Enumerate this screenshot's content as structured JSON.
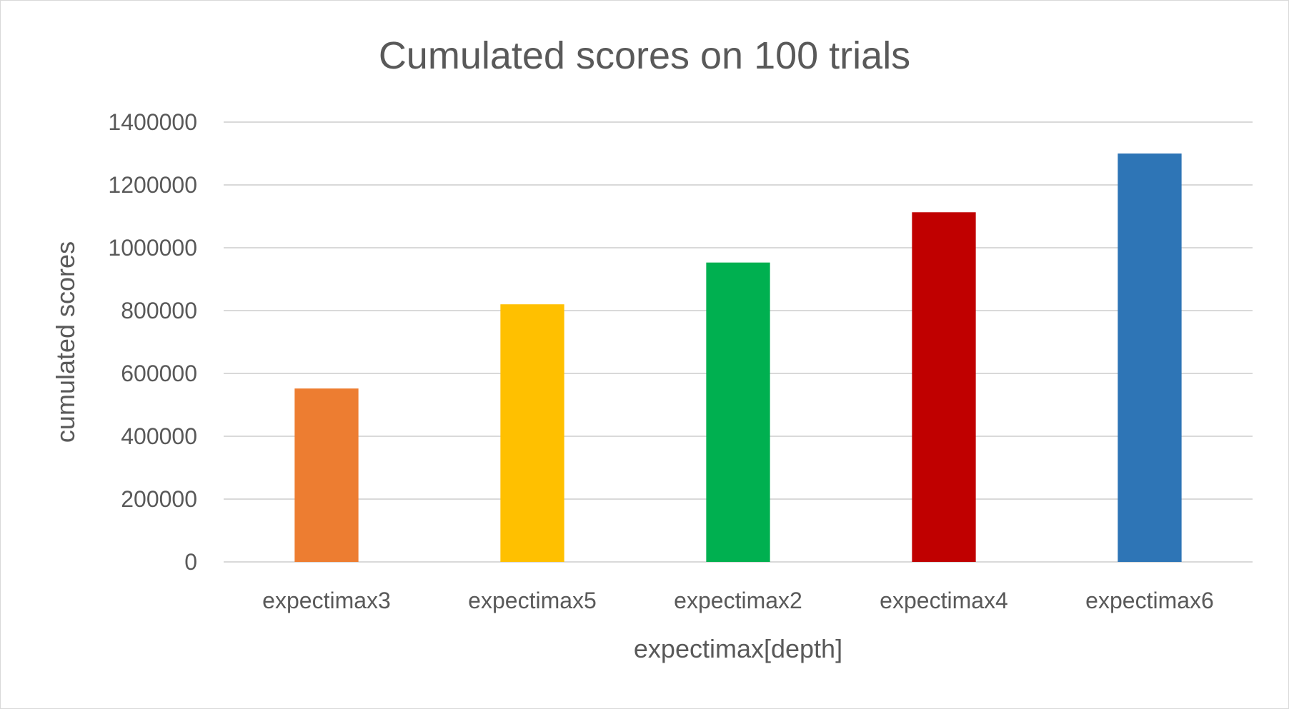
{
  "chart_data": {
    "type": "bar",
    "title": "Cumulated scores on 100 trials",
    "xlabel": "expectimax[depth]",
    "ylabel": "cumulated scores",
    "categories": [
      "expectimax3",
      "expectimax5",
      "expectimax2",
      "expectimax4",
      "expectimax6"
    ],
    "values": [
      552000,
      820000,
      953000,
      1113000,
      1300000
    ],
    "colors": [
      "#ED7D31",
      "#FFC000",
      "#00B050",
      "#C00000",
      "#2E75B6"
    ],
    "ylim": [
      0,
      1400000
    ],
    "yticks": [
      "0",
      "200000",
      "400000",
      "600000",
      "800000",
      "1000000",
      "1200000",
      "1400000"
    ],
    "grid": true,
    "legend": "none"
  }
}
